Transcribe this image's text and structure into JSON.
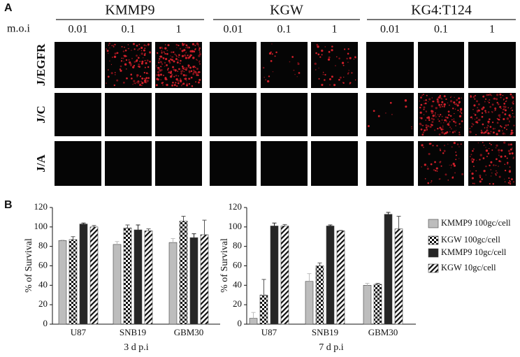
{
  "panel_a": {
    "label": "A",
    "moi_label": "m.o.i",
    "groups": [
      {
        "name": "KMMP9",
        "moi": [
          "0.01",
          "0.1",
          "1"
        ]
      },
      {
        "name": "KGW",
        "moi": [
          "0.01",
          "0.1",
          "1"
        ]
      },
      {
        "name": "KG4:T124",
        "moi": [
          "0.01",
          "0.1",
          "1"
        ]
      }
    ],
    "rows": [
      "J/EGFR",
      "J/C",
      "J/A"
    ]
  },
  "panel_b": {
    "label": "B"
  },
  "chart_data": [
    {
      "type": "bar",
      "xlabel": "3  d p.i",
      "ylabel": "% of Survival",
      "categories": [
        "U87",
        "SNB19",
        "GBM30"
      ],
      "ylim": [
        0,
        120
      ],
      "yticks": [
        0,
        20,
        40,
        60,
        80,
        100,
        120
      ],
      "series": [
        {
          "name": "KMMP9 100gc/cell",
          "color": "#bdbdbd",
          "pattern": null,
          "values": [
            86,
            82,
            84
          ],
          "errors": [
            0.5,
            3,
            4
          ]
        },
        {
          "name": "KGW 100gc/cell",
          "color": "#111111",
          "pattern": "checker",
          "values": [
            87,
            99,
            106
          ],
          "errors": [
            3,
            3,
            5
          ]
        },
        {
          "name": "KMMP9 10gc/cell",
          "color": "#262626",
          "pattern": null,
          "values": [
            103,
            97,
            89
          ],
          "errors": [
            1,
            5,
            4
          ]
        },
        {
          "name": "KGW 10gc/cell",
          "color": "#111111",
          "pattern": "hatch",
          "values": [
            100,
            96,
            92
          ],
          "errors": [
            1.5,
            2,
            15
          ]
        }
      ]
    },
    {
      "type": "bar",
      "xlabel": "7  d p.i",
      "ylabel": "% of Survival",
      "categories": [
        "U87",
        "SNB19",
        "GBM30"
      ],
      "ylim": [
        0,
        120
      ],
      "yticks": [
        0,
        20,
        40,
        60,
        80,
        100,
        120
      ],
      "legend": "right",
      "series": [
        {
          "name": "KMMP9 100gc/cell",
          "color": "#bdbdbd",
          "pattern": null,
          "values": [
            6,
            44,
            40
          ],
          "errors": [
            6,
            8,
            2
          ]
        },
        {
          "name": "KGW 100gc/cell",
          "color": "#111111",
          "pattern": "checker",
          "values": [
            30,
            60,
            41
          ],
          "errors": [
            16,
            3,
            1
          ]
        },
        {
          "name": "KMMP9 10gc/cell",
          "color": "#262626",
          "pattern": null,
          "values": [
            101,
            101,
            113
          ],
          "errors": [
            3,
            1,
            2
          ]
        },
        {
          "name": "KGW 10gc/cell",
          "color": "#111111",
          "pattern": "hatch",
          "values": [
            101,
            96,
            98
          ],
          "errors": [
            1.5,
            0.5,
            13
          ]
        }
      ]
    }
  ]
}
